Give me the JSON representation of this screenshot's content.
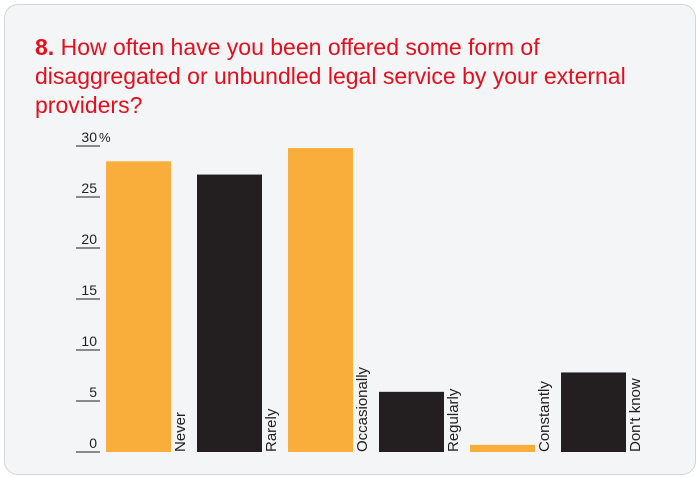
{
  "question": {
    "number": "8.",
    "text": "How often have you been offered some form of disaggregated or unbundled legal service by your external providers?"
  },
  "colors": {
    "orange": "#f9ae3b",
    "black": "#231f20",
    "title": "#e30f1f",
    "axis": "#231f20"
  },
  "chart_data": {
    "type": "bar",
    "categories": [
      "Never",
      "Rarely",
      "Occasionally",
      "Regularly",
      "Constantly",
      "Don't know"
    ],
    "values": [
      28.5,
      27.2,
      29.8,
      5.9,
      0.7,
      7.8
    ],
    "bar_colors": [
      "orange",
      "black",
      "orange",
      "black",
      "orange",
      "black"
    ],
    "y_ticks": [
      0,
      5,
      10,
      15,
      20,
      25,
      30
    ],
    "y_tick_labels": [
      "0",
      "5",
      "10",
      "15",
      "20",
      "25",
      "30"
    ],
    "y_unit": "%",
    "ylim": [
      0,
      30
    ],
    "title": "How often have you been offered some form of disaggregated or unbundled legal service by your external providers?",
    "xlabel": "",
    "ylabel": ""
  }
}
